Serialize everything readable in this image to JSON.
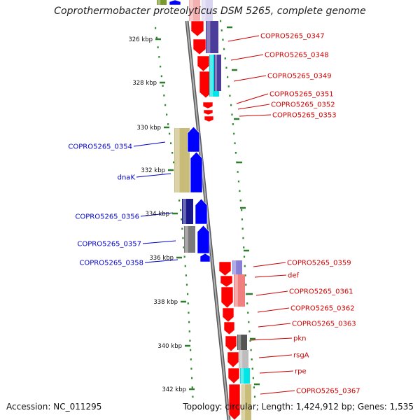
{
  "title": "Coprothermobacter proteolyticus DSM 5265, complete genome",
  "footer": {
    "accession": "Accession: NC_011295",
    "topology": "Topology: circular; Length: 1,424,912 bp; Genes: 1,535"
  },
  "colors": {
    "backbone": "#8c8c8c",
    "tick_dots": "#2e8b2e",
    "forward_cds": "#ff0000",
    "reverse_cds": "#0000ff",
    "right_label": "#cc0000",
    "left_label": "#0000cc",
    "cog_navy": "#4b3d9a",
    "cog_cyan": "#00e5e5",
    "cog_olive": "#c9bb78",
    "cog_dark_blue": "#1a1a8c",
    "cog_gray": "#7a7a7a",
    "cog_light_gray": "#bdbdbd",
    "cog_pink": "#f08080",
    "cog_lavender": "#8a7fd6"
  },
  "ticks": [
    {
      "label": "326 kbp"
    },
    {
      "label": "328 kbp"
    },
    {
      "label": "330 kbp"
    },
    {
      "label": "332 kbp"
    },
    {
      "label": "334 kbp"
    },
    {
      "label": "336 kbp"
    },
    {
      "label": "338 kbp"
    },
    {
      "label": "340 kbp"
    },
    {
      "label": "342 kbp"
    }
  ],
  "right_labels": [
    {
      "text": "COPRO5265_0347"
    },
    {
      "text": "COPRO5265_0348"
    },
    {
      "text": "COPRO5265_0349"
    },
    {
      "text": "COPRO5265_0351"
    },
    {
      "text": "COPRO5265_0352"
    },
    {
      "text": "COPRO5265_0353"
    },
    {
      "text": "COPRO5265_0359"
    },
    {
      "text": "def"
    },
    {
      "text": "COPRO5265_0361"
    },
    {
      "text": "COPRO5265_0362"
    },
    {
      "text": "COPRO5265_0363"
    },
    {
      "text": "pkn"
    },
    {
      "text": "rsgA"
    },
    {
      "text": "rpe"
    },
    {
      "text": "COPRO5265_0367"
    }
  ],
  "left_labels": [
    {
      "text": "COPRO5265_0354"
    },
    {
      "text": "dnaK"
    },
    {
      "text": "COPRO5265_0356"
    },
    {
      "text": "COPRO5265_0357"
    },
    {
      "text": "COPRO5265_0358"
    }
  ]
}
